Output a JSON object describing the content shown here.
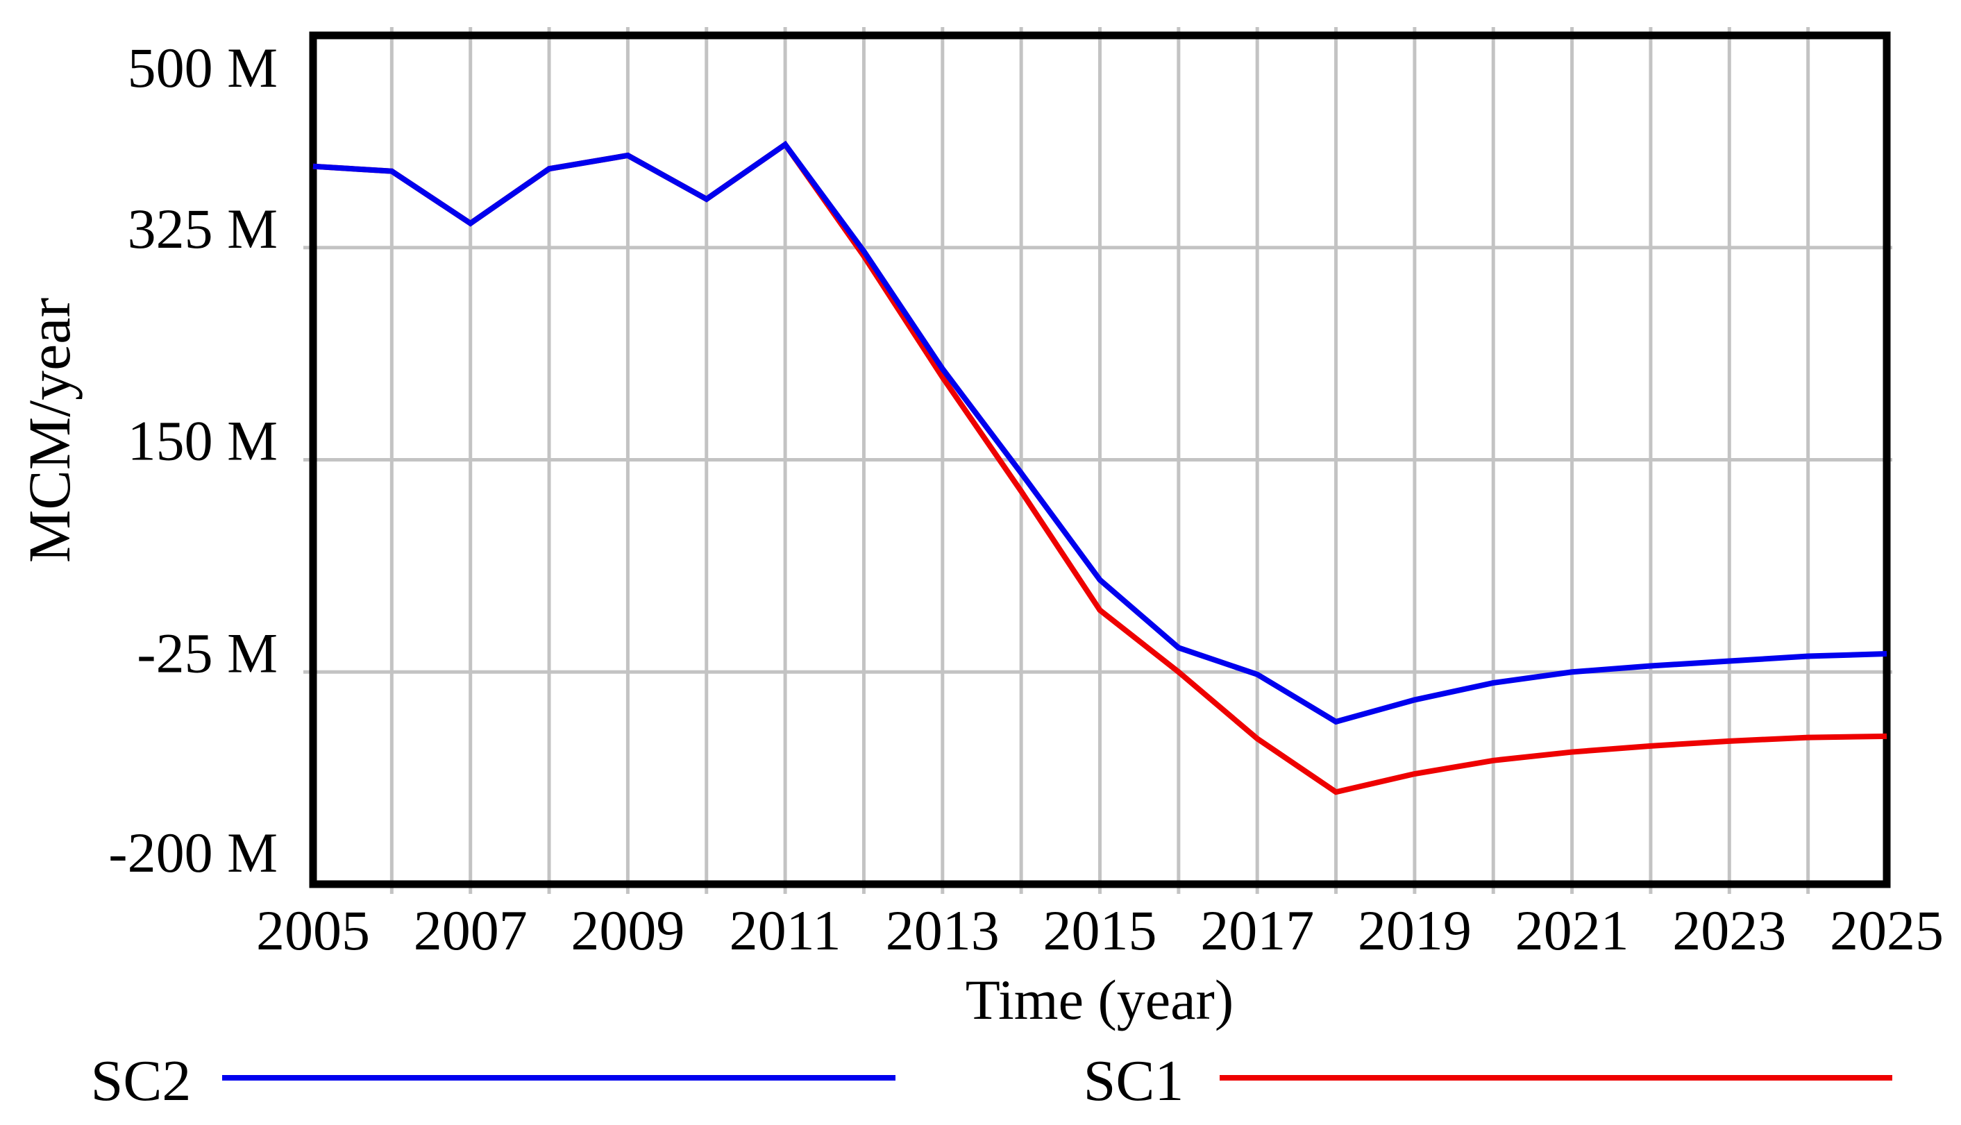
{
  "chart_data": {
    "type": "line",
    "title": "",
    "xlabel": "Time (year)",
    "ylabel": "MCM/year",
    "xlim": [
      2005,
      2025
    ],
    "ylim": [
      -200,
      500
    ],
    "x": [
      2005,
      2006,
      2007,
      2008,
      2009,
      2010,
      2011,
      2012,
      2013,
      2014,
      2015,
      2016,
      2017,
      2018,
      2019,
      2020,
      2021,
      2022,
      2023,
      2024,
      2025
    ],
    "x_tick_labels": [
      "2005",
      "2007",
      "2009",
      "2011",
      "2013",
      "2015",
      "2017",
      "2019",
      "2021",
      "2023",
      "2025"
    ],
    "x_tick_step": 2,
    "y_ticks": [
      {
        "value": 500,
        "label": "500 M"
      },
      {
        "value": 325,
        "label": "325 M"
      },
      {
        "value": 150,
        "label": "150 M"
      },
      {
        "value": -25,
        "label": "-25 M"
      },
      {
        "value": -200,
        "label": "-200 M"
      }
    ],
    "grid": {
      "vertical_every_year": true,
      "horizontal_at": [
        325,
        150,
        -25
      ]
    },
    "series": [
      {
        "name": "SC1",
        "color": "#ee0000",
        "values": [
          392,
          388,
          345,
          390,
          401,
          365,
          410,
          318,
          218,
          124,
          26,
          -25,
          -80,
          -124,
          -109,
          -98,
          -91,
          -86,
          -82,
          -79,
          -78
        ]
      },
      {
        "name": "SC2",
        "color": "#0000ee",
        "values": [
          392,
          388,
          345,
          390,
          401,
          365,
          410,
          322,
          225,
          139,
          51,
          -5,
          -27,
          -66,
          -48,
          -34,
          -25,
          -20,
          -16,
          -12,
          -10
        ]
      }
    ],
    "legend": {
      "position": "bottom",
      "entries": [
        {
          "name": "SC2",
          "color": "#0000ee"
        },
        {
          "name": "SC1",
          "color": "#ee0000"
        }
      ]
    }
  },
  "colors": {
    "background": "#ffffff",
    "frame": "#000000",
    "grid": "#c3c3c3",
    "text": "#000000"
  }
}
